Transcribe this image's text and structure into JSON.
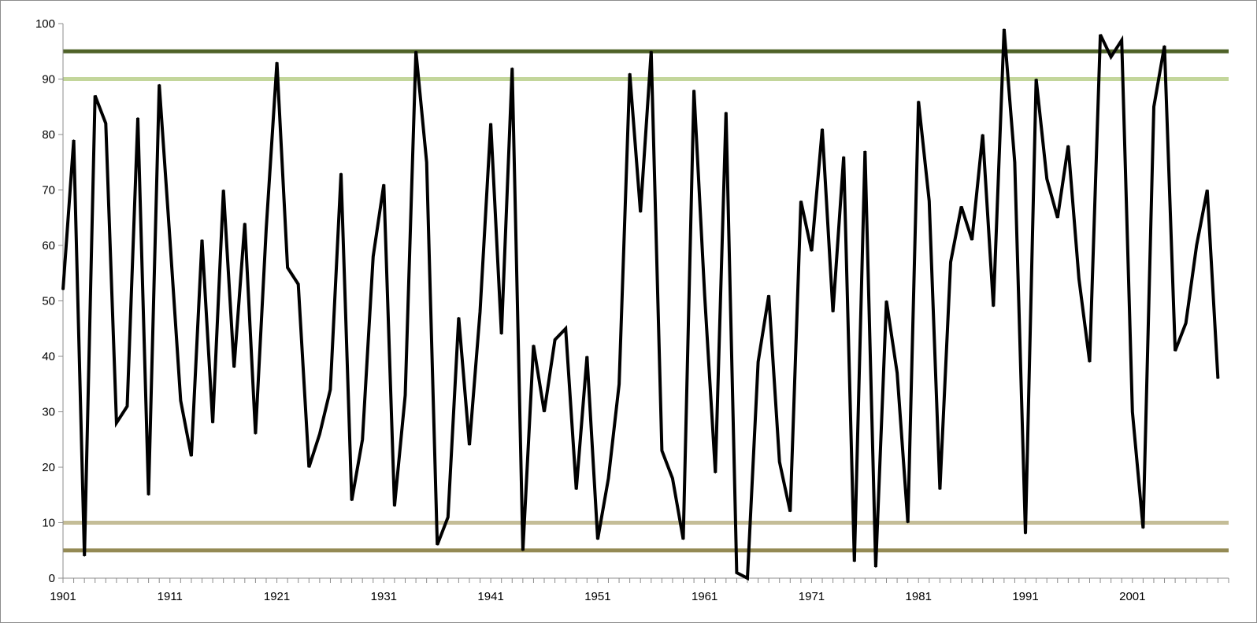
{
  "chart_data": {
    "type": "line",
    "title": "",
    "xlabel": "",
    "ylabel": "",
    "ylim": [
      0,
      100
    ],
    "y_ticks": [
      0,
      10,
      20,
      30,
      40,
      50,
      60,
      70,
      80,
      90,
      100
    ],
    "xlim": [
      1901,
      2009
    ],
    "x_tick_labels": [
      "1901",
      "1911",
      "1921",
      "1931",
      "1941",
      "1951",
      "1961",
      "1971",
      "1981",
      "1991",
      "2001"
    ],
    "grid": false,
    "legend": "none",
    "reference_lines": [
      {
        "value": 95,
        "color": "#4f6228"
      },
      {
        "value": 90,
        "color": "#c3d69b"
      },
      {
        "value": 10,
        "color": "#c4bd97"
      },
      {
        "value": 5,
        "color": "#948a54"
      }
    ],
    "series": [
      {
        "color": "#000000",
        "x": [
          1901,
          1902,
          1903,
          1904,
          1905,
          1906,
          1907,
          1908,
          1909,
          1910,
          1911,
          1912,
          1913,
          1914,
          1915,
          1916,
          1917,
          1918,
          1919,
          1920,
          1921,
          1922,
          1923,
          1924,
          1925,
          1926,
          1927,
          1928,
          1929,
          1930,
          1931,
          1932,
          1933,
          1934,
          1935,
          1936,
          1937,
          1938,
          1939,
          1940,
          1941,
          1942,
          1943,
          1944,
          1945,
          1946,
          1947,
          1948,
          1949,
          1950,
          1951,
          1952,
          1953,
          1954,
          1955,
          1956,
          1957,
          1958,
          1959,
          1960,
          1961,
          1962,
          1963,
          1964,
          1965,
          1966,
          1967,
          1968,
          1969,
          1970,
          1971,
          1972,
          1973,
          1974,
          1975,
          1976,
          1977,
          1978,
          1979,
          1980,
          1981,
          1982,
          1983,
          1984,
          1985,
          1986,
          1987,
          1988,
          1989,
          1990,
          1991,
          1992,
          1993,
          1994,
          1995,
          1996,
          1997,
          1998,
          1999,
          2000,
          2001,
          2002,
          2003,
          2004,
          2005,
          2006,
          2007,
          2008,
          2009
        ],
        "values": [
          52,
          79,
          4,
          87,
          82,
          28,
          31,
          83,
          15,
          89,
          61,
          32,
          22,
          61,
          28,
          70,
          38,
          64,
          26,
          63,
          93,
          56,
          53,
          20,
          26,
          34,
          73,
          14,
          25,
          58,
          71,
          13,
          33,
          95,
          75,
          6,
          11,
          47,
          24,
          48,
          82,
          44,
          92,
          5,
          42,
          30,
          43,
          45,
          16,
          40,
          7,
          18,
          35,
          91,
          66,
          95,
          23,
          18,
          7,
          88,
          51,
          19,
          84,
          1,
          0,
          39,
          51,
          21,
          12,
          68,
          59,
          81,
          48,
          76,
          3,
          77,
          2,
          50,
          37,
          10,
          86,
          68,
          16,
          57,
          67,
          61,
          80,
          49,
          99,
          75,
          8,
          90,
          72,
          65,
          78,
          54,
          39,
          98,
          94,
          97,
          30,
          9,
          85,
          96,
          41,
          46,
          60,
          70,
          36
        ]
      }
    ]
  }
}
